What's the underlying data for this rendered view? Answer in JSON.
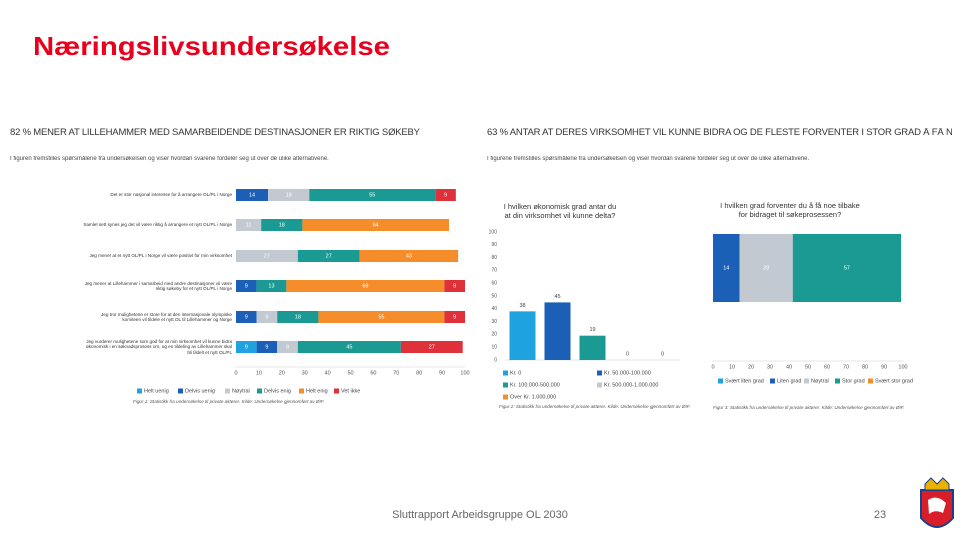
{
  "title": "Næringslivsundersøkelse",
  "footer": "Sluttrapport Arbeidsgruppe OL 2030",
  "page_number": "23",
  "panels": [
    {
      "heading": "82 % MENER AT LILLEHAMMER MED SAMARBEIDENDE DESTINASJONER ER RIKTIG SØKEBY",
      "intro": "I figuren fremstilles spørsmålene fra undersøkelsen og viser hvordan svarene fordeler seg ut over de ulike alternativene."
    },
    {
      "heading": "63 % ANTAR AT DERES VIRKSOMHET VIL KUNNE BIDRA OG DE FLESTE FORVENTER I STOR GRAD Å FÅ NOE TILBAKE",
      "intro": "I figurene fremstilles spørsmålene fra undersøkelsen og viser hvordan svarene fordeler seg ut over de ulike alternativene."
    }
  ],
  "chart_data": [
    {
      "type": "stacked_barh",
      "caption": "Figur 1: Statistikk fra undersøkelse til private aktører. Kilde: Undersøkelse gjennomført av ØIF.",
      "categories": [
        "Det er stor nasjonal interesse for å arrangere OL/PL i Norge",
        "Samlet sett synes jeg det vil være riktig å arrangere et nytt OL/PL i Norge",
        "Jeg mener at et nytt OL/PL i Norge vil være positivt for min virksomhet",
        "Jeg mener at Lillehammer i samarbeid med andre destinasjoner vil være riktig søkeby for et nytt OL/PL i Norge",
        "Jeg tror mulighetene er store for at den internasjonale olympiske komiteen vil tildele et nytt OL til Lillehammer og Norge",
        "Jeg vurderer mulighetene som god for at min virksomhet vil kunne bidra økonomisk i en søknadsprosess om, og en tildeling av Lillehammer skal bli tildelt et nytt OL/PL"
      ],
      "series": [
        {
          "name": "Helt uenig",
          "color": "#1fa3e0",
          "values": [
            null,
            null,
            null,
            null,
            null,
            9
          ]
        },
        {
          "name": "Delvis uenig",
          "color": "#1b5fb6",
          "values": [
            14,
            null,
            null,
            9,
            9,
            9
          ]
        },
        {
          "name": "Nøytral",
          "color": "#c3c9d0",
          "values": [
            18,
            11,
            27,
            null,
            9,
            9
          ]
        },
        {
          "name": "Delvis enig",
          "color": "#1a9a93",
          "values": [
            55,
            18,
            27,
            13,
            18,
            45
          ]
        },
        {
          "name": "Helt enig",
          "color": "#f58d2b",
          "values": [
            null,
            64,
            43,
            69,
            55,
            null
          ]
        },
        {
          "name": "Vet ikke",
          "color": "#e0313a",
          "values": [
            9,
            null,
            null,
            9,
            9,
            27
          ]
        }
      ],
      "xlim": [
        0,
        100
      ],
      "xticks": [
        0,
        10,
        20,
        30,
        40,
        50,
        60,
        70,
        80,
        90,
        100
      ]
    },
    {
      "type": "bar",
      "title": "I hvilken økonomisk grad antar du at din virksomhet vil kunne delta?",
      "caption": "Figur 2: Statistikk fra undersøkelse til private aktører. Kilde: Undersøkelse gjennomført av ØIF.",
      "categories": [
        "Kr. 0",
        "Kr. 50.000-100.000",
        "Kr. 100.000-500.000",
        "Kr. 500.000-1.000.000",
        "Over Kr. 1.000.000"
      ],
      "values": [
        38,
        45,
        19,
        0,
        0
      ],
      "colors": [
        "#1fa3e0",
        "#1b5fb6",
        "#1a9a93",
        "#c3c9d0",
        "#f58d2b"
      ],
      "ylim": [
        0,
        100
      ],
      "yticks": [
        0,
        10,
        20,
        30,
        40,
        50,
        60,
        70,
        80,
        90,
        100
      ]
    },
    {
      "type": "stacked_barh",
      "title": "I hvilken grad forventer du å få noe tilbake for bidraget til søkeprosessen?",
      "caption": "Figur 3: Statistikk fra undersøkelse til private aktører. Kilde: Undersøkelse gjennomført av ØIF.",
      "categories": [
        null
      ],
      "series": [
        {
          "name": "Svært liten grad",
          "color": "#1fa3e0",
          "values": [
            null
          ]
        },
        {
          "name": "Liten grad",
          "color": "#1b5fb6",
          "values": [
            14
          ]
        },
        {
          "name": "Nøytral",
          "color": "#c3c9d0",
          "values": [
            28
          ]
        },
        {
          "name": "Stor grad",
          "color": "#1a9a93",
          "values": [
            57
          ]
        },
        {
          "name": "Svært stor grad",
          "color": "#f58d2b",
          "values": [
            null
          ]
        }
      ],
      "xlim": [
        0,
        100
      ],
      "xticks": [
        0,
        10,
        20,
        30,
        40,
        50,
        60,
        70,
        80,
        90,
        100
      ]
    }
  ]
}
